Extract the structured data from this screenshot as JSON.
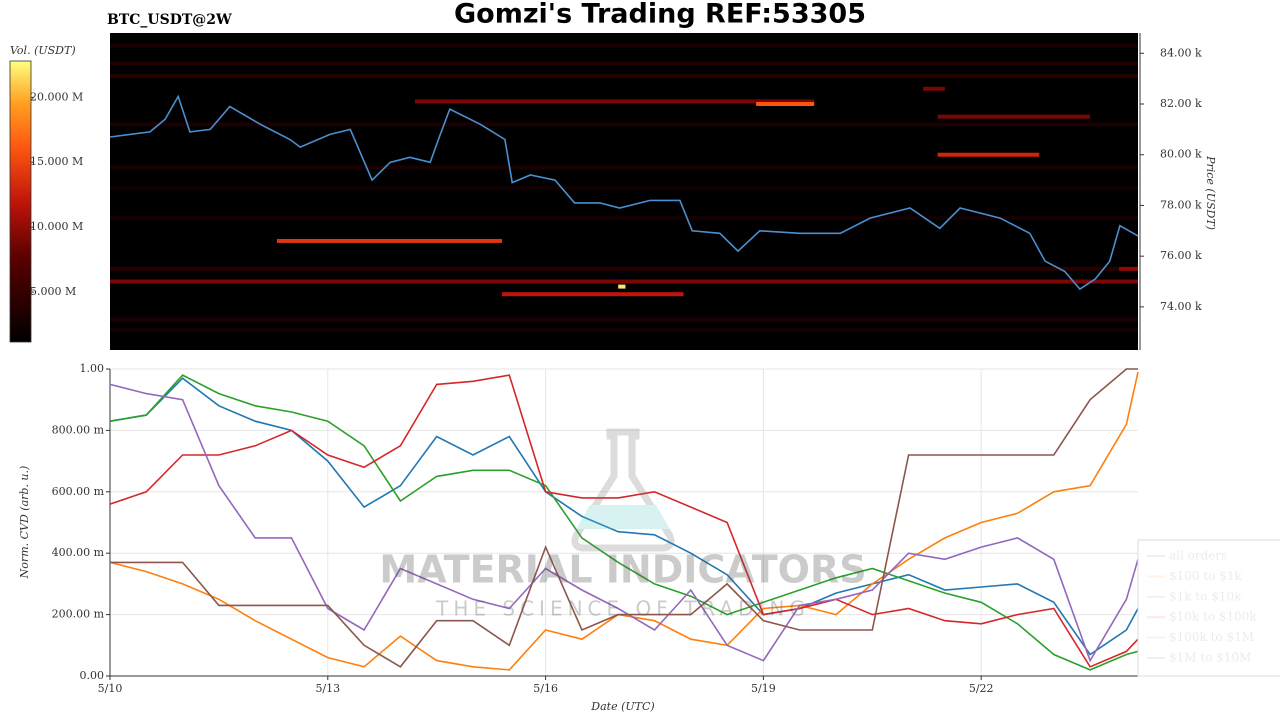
{
  "watermark": {
    "title": "MATERIAL INDICATORS",
    "tagline": "THE SCIENCE OF TRADING"
  },
  "chart_data": [
    {
      "type": "heatmap",
      "title": "Gomzi's Trading REF:53305",
      "subtitle": "BTC_USDT@2W",
      "y_label": "Price (USDT)",
      "colorbar_label": "Vol. (USDT)",
      "xlim": [
        10,
        24.16
      ],
      "ylim": [
        72300,
        84800
      ],
      "yticks": [
        {
          "value": 74000,
          "label": "74.00 k"
        },
        {
          "value": 76000,
          "label": "76.00 k"
        },
        {
          "value": 78000,
          "label": "78.00 k"
        },
        {
          "value": 80000,
          "label": "80.00 k"
        },
        {
          "value": 82000,
          "label": "82.00 k"
        },
        {
          "value": 84000,
          "label": "84.00 k"
        }
      ],
      "colorbar_lim": [
        1150000,
        22800000
      ],
      "colorbar_ticks": [
        {
          "value": 5000000,
          "label": "5.000 M"
        },
        {
          "value": 10000000,
          "label": "10.000 M"
        },
        {
          "value": 15000000,
          "label": "15.000 M"
        },
        {
          "value": 20000000,
          "label": "20.000 M"
        }
      ],
      "color": "#4a90d0",
      "x": [
        10.0,
        10.55,
        10.76,
        10.94,
        11.1,
        11.38,
        11.65,
        12.07,
        12.48,
        12.62,
        13.03,
        13.31,
        13.61,
        13.86,
        14.13,
        14.41,
        14.55,
        14.68,
        15.1,
        15.44,
        15.54,
        15.79,
        16.13,
        16.4,
        16.75,
        17.02,
        17.44,
        17.85,
        18.02,
        18.4,
        18.65,
        18.95,
        19.5,
        20.06,
        20.47,
        21.02,
        21.43,
        21.71,
        22.26,
        22.67,
        22.88,
        23.15,
        23.36,
        23.57,
        23.77,
        23.91,
        24.16
      ],
      "values": [
        80700,
        80900,
        81400,
        82300,
        80900,
        81000,
        81900,
        81200,
        80600,
        80300,
        80800,
        81000,
        79000,
        79700,
        79900,
        79700,
        80800,
        81800,
        81200,
        80600,
        78900,
        79200,
        79000,
        78100,
        78100,
        77900,
        78200,
        78200,
        77000,
        76900,
        76200,
        77000,
        76900,
        76900,
        77500,
        77900,
        77100,
        77900,
        77500,
        76900,
        75800,
        75400,
        74700,
        75100,
        75800,
        77200,
        76800
      ],
      "levels": [
        {
          "price": 84300,
          "start": 10,
          "end": 24.16,
          "volume": 3000000
        },
        {
          "price": 83600,
          "start": 10,
          "end": 24.16,
          "volume": 3500000
        },
        {
          "price": 83100,
          "start": 10,
          "end": 24.16,
          "volume": 4000000
        },
        {
          "price": 82600,
          "start": 21.2,
          "end": 21.5,
          "volume": 9000000
        },
        {
          "price": 82100,
          "start": 14.2,
          "end": 19.7,
          "volume": 9000000
        },
        {
          "price": 82000,
          "start": 18.9,
          "end": 19.7,
          "volume": 16000000
        },
        {
          "price": 81500,
          "start": 21.4,
          "end": 23.5,
          "volume": 9000000
        },
        {
          "price": 81200,
          "start": 10,
          "end": 24.16,
          "volume": 3000000
        },
        {
          "price": 80000,
          "start": 21.4,
          "end": 22.8,
          "volume": 13000000
        },
        {
          "price": 79500,
          "start": 10,
          "end": 24.16,
          "volume": 3000000
        },
        {
          "price": 78700,
          "start": 10,
          "end": 24.16,
          "volume": 2500000
        },
        {
          "price": 77500,
          "start": 10,
          "end": 24.16,
          "volume": 2500000
        },
        {
          "price": 76600,
          "start": 12.3,
          "end": 15.4,
          "volume": 14000000
        },
        {
          "price": 75500,
          "start": 10,
          "end": 24.16,
          "volume": 4000000
        },
        {
          "price": 75500,
          "start": 23.9,
          "end": 24.16,
          "volume": 10000000
        },
        {
          "price": 75000,
          "start": 10,
          "end": 24.16,
          "volume": 9000000
        },
        {
          "price": 74800,
          "start": 17.0,
          "end": 17.1,
          "volume": 22000000
        },
        {
          "price": 74500,
          "start": 15.4,
          "end": 17.9,
          "volume": 12000000
        },
        {
          "price": 73500,
          "start": 10,
          "end": 24.16,
          "volume": 3000000
        },
        {
          "price": 73100,
          "start": 10,
          "end": 24.16,
          "volume": 2500000
        }
      ]
    },
    {
      "type": "line",
      "x_label": "Date (UTC)",
      "y_label": "Norm. CVD (arb. u.)",
      "xlim": [
        10,
        24.16
      ],
      "ylim": [
        0,
        1
      ],
      "xticks": [
        {
          "value": 10,
          "label": "5/10"
        },
        {
          "value": 13,
          "label": "5/13"
        },
        {
          "value": 16,
          "label": "5/16"
        },
        {
          "value": 19,
          "label": "5/19"
        },
        {
          "value": 22,
          "label": "5/22"
        }
      ],
      "yticks": [
        {
          "value": 0,
          "label": "0.00"
        },
        {
          "value": 0.2,
          "label": "200.00 m"
        },
        {
          "value": 0.4,
          "label": "400.00 m"
        },
        {
          "value": 0.6,
          "label": "600.00 m"
        },
        {
          "value": 0.8,
          "label": "800.00 m"
        },
        {
          "value": 1,
          "label": "1.00"
        }
      ],
      "grid": true,
      "legend": "right",
      "x": [
        10,
        10.5,
        11,
        11.5,
        12,
        12.5,
        13,
        13.5,
        14,
        14.5,
        15,
        15.5,
        16,
        16.5,
        17,
        17.5,
        18,
        18.5,
        19,
        19.5,
        20,
        20.5,
        21,
        21.5,
        22,
        22.5,
        23,
        23.5,
        24,
        24.16
      ],
      "series": [
        {
          "name": "all orders",
          "color": "#1f77b4",
          "values": [
            0.83,
            0.85,
            0.97,
            0.88,
            0.83,
            0.8,
            0.7,
            0.55,
            0.62,
            0.78,
            0.72,
            0.78,
            0.6,
            0.52,
            0.47,
            0.46,
            0.4,
            0.33,
            0.2,
            0.22,
            0.27,
            0.3,
            0.33,
            0.28,
            0.29,
            0.3,
            0.24,
            0.07,
            0.15,
            0.22
          ]
        },
        {
          "name": "$100 to $1k",
          "color": "#ff7f0e",
          "values": [
            0.37,
            0.34,
            0.3,
            0.25,
            0.18,
            0.12,
            0.06,
            0.03,
            0.13,
            0.05,
            0.03,
            0.02,
            0.15,
            0.12,
            0.2,
            0.18,
            0.12,
            0.1,
            0.22,
            0.23,
            0.2,
            0.3,
            0.38,
            0.45,
            0.5,
            0.53,
            0.6,
            0.62,
            0.82,
            0.99
          ]
        },
        {
          "name": "$1k to $10k",
          "color": "#2ca02c",
          "values": [
            0.83,
            0.85,
            0.98,
            0.92,
            0.88,
            0.86,
            0.83,
            0.75,
            0.57,
            0.65,
            0.67,
            0.67,
            0.62,
            0.45,
            0.37,
            0.3,
            0.26,
            0.2,
            0.24,
            0.28,
            0.32,
            0.35,
            0.31,
            0.27,
            0.24,
            0.17,
            0.07,
            0.02,
            0.07,
            0.08
          ]
        },
        {
          "name": "$10k to $100k",
          "color": "#d62728",
          "values": [
            0.56,
            0.6,
            0.72,
            0.72,
            0.75,
            0.8,
            0.72,
            0.68,
            0.75,
            0.95,
            0.96,
            0.98,
            0.6,
            0.58,
            0.58,
            0.6,
            0.55,
            0.5,
            0.2,
            0.22,
            0.25,
            0.2,
            0.22,
            0.18,
            0.17,
            0.2,
            0.22,
            0.03,
            0.08,
            0.12
          ]
        },
        {
          "name": "$100k to $1M",
          "color": "#9467bd",
          "values": [
            0.95,
            0.92,
            0.9,
            0.62,
            0.45,
            0.45,
            0.22,
            0.15,
            0.35,
            0.3,
            0.25,
            0.22,
            0.35,
            0.28,
            0.22,
            0.15,
            0.28,
            0.1,
            0.05,
            0.23,
            0.25,
            0.28,
            0.4,
            0.38,
            0.42,
            0.45,
            0.38,
            0.05,
            0.25,
            0.38
          ]
        },
        {
          "name": "$1M to $10M",
          "color": "#8c564b",
          "values": [
            0.37,
            0.37,
            0.37,
            0.23,
            0.23,
            0.23,
            0.23,
            0.1,
            0.03,
            0.18,
            0.18,
            0.1,
            0.42,
            0.15,
            0.2,
            0.2,
            0.2,
            0.3,
            0.18,
            0.15,
            0.15,
            0.15,
            0.72,
            0.72,
            0.72,
            0.72,
            0.72,
            0.9,
            1.0,
            1.0
          ]
        }
      ]
    }
  ]
}
